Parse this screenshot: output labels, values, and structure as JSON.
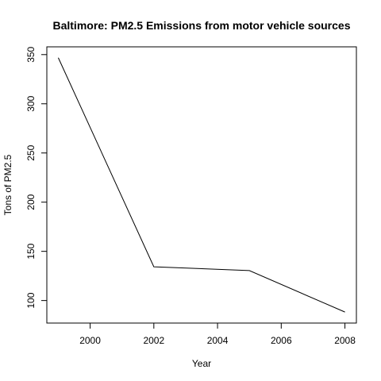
{
  "chart_data": {
    "type": "line",
    "title": "Baltimore: PM2.5 Emissions from motor vehicle sources",
    "xlabel": "Year",
    "ylabel": "Tons of PM2.5",
    "x": [
      1999,
      2002,
      2005,
      2008
    ],
    "series": [
      {
        "values": [
          346.82,
          134.31,
          130.43,
          88.28
        ]
      }
    ],
    "xlim": [
      1998.64,
      2008.36
    ],
    "ylim": [
      77.1,
      357.9
    ],
    "xticks": [
      2000,
      2002,
      2004,
      2006,
      2008
    ],
    "xtick_labels": [
      "2000",
      "2002",
      "2004",
      "2006",
      "2008"
    ],
    "yticks": [
      100,
      150,
      200,
      250,
      300,
      350
    ],
    "ytick_labels": [
      "100",
      "150",
      "200",
      "250",
      "300",
      "350"
    ],
    "line_color": "#000000",
    "grid": false,
    "legend": "none"
  }
}
